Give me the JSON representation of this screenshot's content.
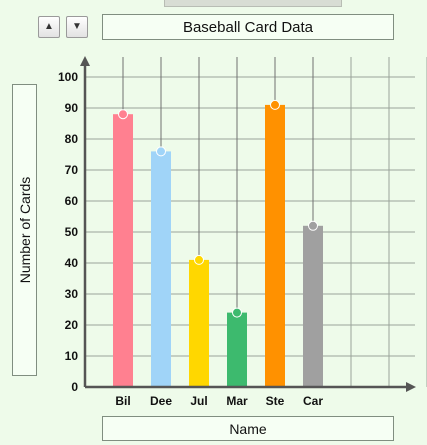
{
  "controls": {
    "up_icon": "▲",
    "down_icon": "▼"
  },
  "chart_data": {
    "type": "bar",
    "title": "Baseball Card Data",
    "xlabel": "Name",
    "ylabel": "Number of Cards",
    "categories": [
      "Bil",
      "Dee",
      "Jul",
      "Mar",
      "Ste",
      "Car"
    ],
    "values": [
      88,
      76,
      41,
      24,
      91,
      52
    ],
    "colors": [
      "#ff8090",
      "#a0d4f8",
      "#ffd700",
      "#3dba6e",
      "#ff9100",
      "#a0a0a0"
    ],
    "ylim": [
      0,
      100
    ],
    "yticks": [
      0,
      10,
      20,
      30,
      40,
      50,
      60,
      70,
      80,
      90,
      100
    ],
    "grid": true
  }
}
